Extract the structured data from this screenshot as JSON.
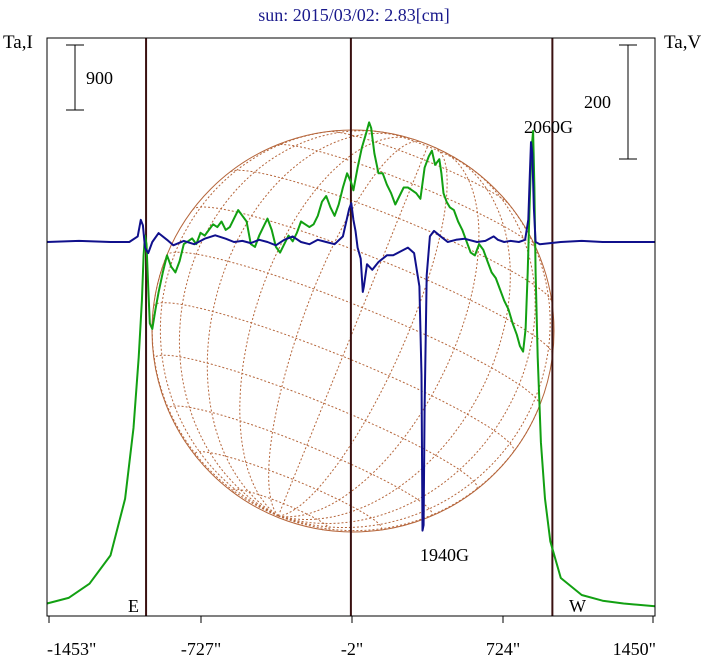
{
  "chart_data": {
    "type": "line",
    "title": "sun: 2015/03/02: 2.83[cm]",
    "ylabel_left": "Ta,I",
    "ylabel_right": "Ta,V",
    "x_ticks": [
      "-1453\"",
      "-727\"",
      "-2\"",
      "724\"",
      "1450\""
    ],
    "x_range": [
      -1453,
      1450
    ],
    "scale_left": "900",
    "scale_right": "200",
    "limb_labels": {
      "east": "E",
      "west": "W"
    },
    "vertical_markers_arcsec": [
      -980,
      -2,
      960
    ],
    "annotations": [
      {
        "text": "2060G",
        "x": 900
      },
      {
        "text": "1940G",
        "x": 475
      }
    ],
    "series": [
      {
        "name": "I",
        "color": "#12a012",
        "points": [
          [
            -1453,
            0.03
          ],
          [
            -1350,
            0.05
          ],
          [
            -1250,
            0.1
          ],
          [
            -1150,
            0.2
          ],
          [
            -1080,
            0.4
          ],
          [
            -1040,
            0.65
          ],
          [
            -1015,
            0.9
          ],
          [
            -1000,
            1.1
          ],
          [
            -992,
            1.26
          ],
          [
            -985,
            1.33
          ],
          [
            -978,
            1.3
          ],
          [
            -970,
            1.15
          ],
          [
            -962,
            1.02
          ],
          [
            -950,
            1.0
          ],
          [
            -935,
            1.07
          ],
          [
            -920,
            1.13
          ],
          [
            -900,
            1.2
          ],
          [
            -880,
            1.26
          ],
          [
            -860,
            1.22
          ],
          [
            -840,
            1.2
          ],
          [
            -820,
            1.24
          ],
          [
            -800,
            1.3
          ],
          [
            -780,
            1.31
          ],
          [
            -760,
            1.32
          ],
          [
            -740,
            1.3
          ],
          [
            -720,
            1.34
          ],
          [
            -700,
            1.33
          ],
          [
            -680,
            1.35
          ],
          [
            -660,
            1.37
          ],
          [
            -640,
            1.36
          ],
          [
            -620,
            1.38
          ],
          [
            -600,
            1.35
          ],
          [
            -580,
            1.36
          ],
          [
            -560,
            1.39
          ],
          [
            -540,
            1.42
          ],
          [
            -520,
            1.4
          ],
          [
            -500,
            1.38
          ],
          [
            -480,
            1.3
          ],
          [
            -460,
            1.29
          ],
          [
            -440,
            1.33
          ],
          [
            -420,
            1.36
          ],
          [
            -400,
            1.39
          ],
          [
            -380,
            1.35
          ],
          [
            -360,
            1.29
          ],
          [
            -340,
            1.27
          ],
          [
            -320,
            1.3
          ],
          [
            -300,
            1.33
          ],
          [
            -280,
            1.31
          ],
          [
            -260,
            1.34
          ],
          [
            -240,
            1.38
          ],
          [
            -220,
            1.37
          ],
          [
            -200,
            1.36
          ],
          [
            -180,
            1.37
          ],
          [
            -160,
            1.4
          ],
          [
            -140,
            1.45
          ],
          [
            -120,
            1.47
          ],
          [
            -100,
            1.43
          ],
          [
            -80,
            1.4
          ],
          [
            -60,
            1.44
          ],
          [
            -40,
            1.5
          ],
          [
            -20,
            1.55
          ],
          [
            -2,
            1.52
          ],
          [
            10,
            1.49
          ],
          [
            30,
            1.57
          ],
          [
            50,
            1.64
          ],
          [
            70,
            1.69
          ],
          [
            85,
            1.73
          ],
          [
            95,
            1.71
          ],
          [
            110,
            1.62
          ],
          [
            130,
            1.55
          ],
          [
            150,
            1.55
          ],
          [
            170,
            1.51
          ],
          [
            190,
            1.48
          ],
          [
            210,
            1.44
          ],
          [
            230,
            1.47
          ],
          [
            250,
            1.5
          ],
          [
            270,
            1.5
          ],
          [
            290,
            1.49
          ],
          [
            310,
            1.48
          ],
          [
            330,
            1.46
          ],
          [
            350,
            1.57
          ],
          [
            370,
            1.61
          ],
          [
            385,
            1.63
          ],
          [
            400,
            1.58
          ],
          [
            420,
            1.6
          ],
          [
            430,
            1.55
          ],
          [
            440,
            1.48
          ],
          [
            455,
            1.45
          ],
          [
            470,
            1.43
          ],
          [
            490,
            1.42
          ],
          [
            510,
            1.38
          ],
          [
            530,
            1.35
          ],
          [
            550,
            1.31
          ],
          [
            570,
            1.27
          ],
          [
            590,
            1.26
          ],
          [
            610,
            1.3
          ],
          [
            630,
            1.28
          ],
          [
            650,
            1.24
          ],
          [
            670,
            1.2
          ],
          [
            690,
            1.18
          ],
          [
            710,
            1.14
          ],
          [
            730,
            1.1
          ],
          [
            750,
            1.07
          ],
          [
            770,
            1.02
          ],
          [
            790,
            0.98
          ],
          [
            805,
            0.94
          ],
          [
            820,
            0.92
          ],
          [
            832,
            1.0
          ],
          [
            842,
            1.2
          ],
          [
            850,
            1.4
          ],
          [
            856,
            1.55
          ],
          [
            862,
            1.65
          ],
          [
            868,
            1.7
          ],
          [
            874,
            1.5
          ],
          [
            880,
            1.2
          ],
          [
            890,
            0.9
          ],
          [
            905,
            0.6
          ],
          [
            925,
            0.4
          ],
          [
            950,
            0.25
          ],
          [
            1000,
            0.12
          ],
          [
            1100,
            0.06
          ],
          [
            1200,
            0.04
          ],
          [
            1300,
            0.03
          ],
          [
            1450,
            0.02
          ]
        ]
      },
      {
        "name": "V",
        "color": "#10108c",
        "points": [
          [
            -1453,
            0.0
          ],
          [
            -1300,
            0.01
          ],
          [
            -1150,
            0.0
          ],
          [
            -1060,
            0.0
          ],
          [
            -1020,
            0.05
          ],
          [
            -1005,
            0.2
          ],
          [
            -995,
            0.15
          ],
          [
            -985,
            -0.05
          ],
          [
            -970,
            -0.1
          ],
          [
            -950,
            0.0
          ],
          [
            -920,
            0.08
          ],
          [
            -880,
            0.02
          ],
          [
            -850,
            -0.03
          ],
          [
            -800,
            0.01
          ],
          [
            -750,
            -0.02
          ],
          [
            -700,
            0.03
          ],
          [
            -650,
            0.06
          ],
          [
            -600,
            0.03
          ],
          [
            -560,
            0.0
          ],
          [
            -520,
            0.01
          ],
          [
            -480,
            -0.01
          ],
          [
            -440,
            0.02
          ],
          [
            -400,
            0.0
          ],
          [
            -360,
            -0.03
          ],
          [
            -320,
            0.02
          ],
          [
            -280,
            0.05
          ],
          [
            -240,
            0.0
          ],
          [
            -200,
            -0.02
          ],
          [
            -160,
            0.02
          ],
          [
            -120,
            0.0
          ],
          [
            -80,
            -0.02
          ],
          [
            -40,
            0.05
          ],
          [
            -10,
            0.3
          ],
          [
            0,
            0.35
          ],
          [
            10,
            0.2
          ],
          [
            20,
            0.1
          ],
          [
            30,
            -0.05
          ],
          [
            45,
            -0.15
          ],
          [
            55,
            -0.45
          ],
          [
            60,
            -0.4
          ],
          [
            75,
            -0.2
          ],
          [
            100,
            -0.25
          ],
          [
            130,
            -0.18
          ],
          [
            170,
            -0.12
          ],
          [
            200,
            -0.12
          ],
          [
            240,
            -0.08
          ],
          [
            270,
            -0.05
          ],
          [
            300,
            -0.1
          ],
          [
            325,
            -0.4
          ],
          [
            335,
            -1.2
          ],
          [
            340,
            -2.6
          ],
          [
            345,
            -2.55
          ],
          [
            350,
            -1.5
          ],
          [
            360,
            -0.3
          ],
          [
            375,
            0.05
          ],
          [
            395,
            0.1
          ],
          [
            420,
            0.06
          ],
          [
            460,
            0.0
          ],
          [
            500,
            0.02
          ],
          [
            540,
            0.03
          ],
          [
            600,
            0.0
          ],
          [
            640,
            0.01
          ],
          [
            680,
            0.05
          ],
          [
            700,
            0.02
          ],
          [
            730,
            0.0
          ],
          [
            760,
            0.01
          ],
          [
            800,
            0.0
          ],
          [
            830,
            0.02
          ],
          [
            845,
            0.2
          ],
          [
            852,
            0.6
          ],
          [
            858,
            0.9
          ],
          [
            864,
            0.8
          ],
          [
            872,
            0.3
          ],
          [
            880,
            0.0
          ],
          [
            900,
            -0.02
          ],
          [
            1000,
            0.0
          ],
          [
            1100,
            0.01
          ],
          [
            1200,
            0.0
          ],
          [
            1300,
            0.0
          ],
          [
            1450,
            0.0
          ]
        ]
      }
    ]
  }
}
